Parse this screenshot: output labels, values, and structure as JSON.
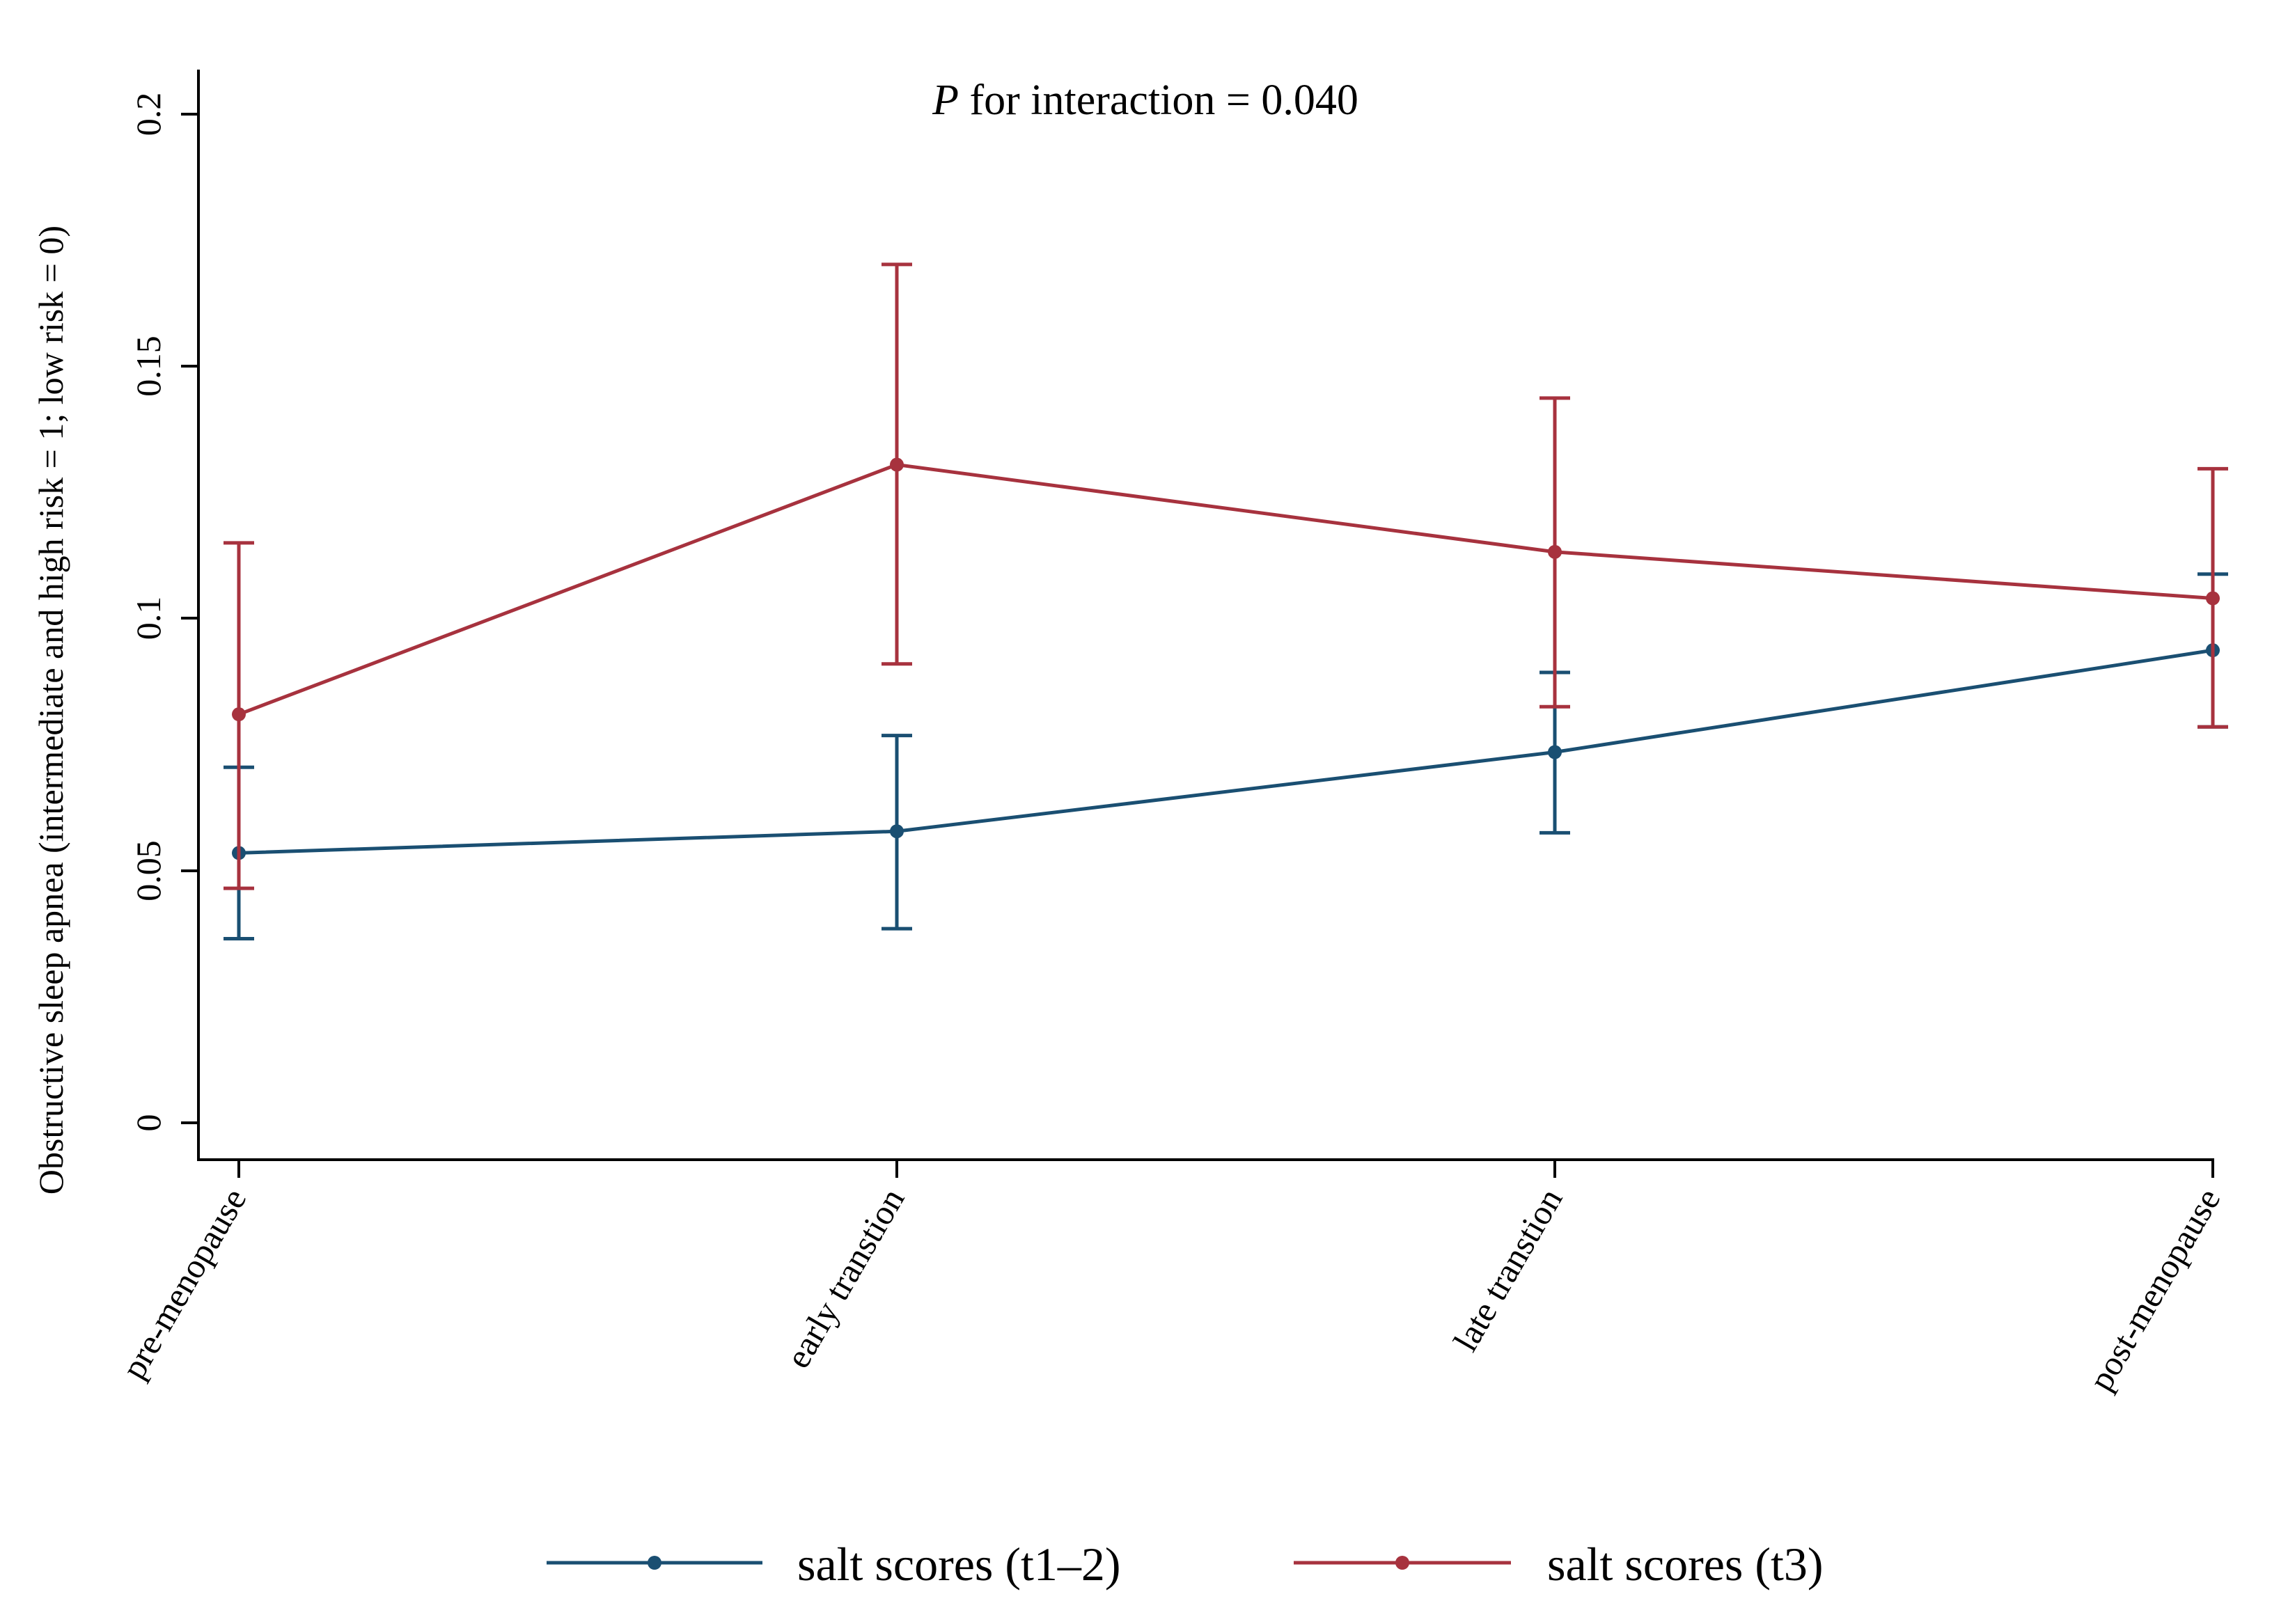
{
  "chart_data": {
    "type": "line",
    "annotation_italic": "P",
    "annotation_rest": " for interaction = 0.040",
    "ylabel": "Obstructive sleep apnea (intermediate and high risk = 1; low risk = 0)",
    "xlabel": "",
    "categories": [
      "pre-menopause",
      "early transtion",
      "late transtion",
      "post-menopause"
    ],
    "ylim": [
      0,
      0.2
    ],
    "yticks": [
      0,
      0.05,
      0.1,
      0.15,
      0.2
    ],
    "ytick_labels": [
      "0",
      "0.05",
      "0.1",
      "0.15",
      "0.2"
    ],
    "error_bars": "confidence intervals",
    "series": [
      {
        "name": "salt scores (t1–2)",
        "color": "#1a4f72",
        "values": [
          0.0535,
          0.0578,
          0.0735,
          0.0937
        ],
        "lower": [
          0.0365,
          0.0385,
          0.0575,
          0.0785
        ],
        "upper": [
          0.0705,
          0.0768,
          0.0893,
          0.1088
        ]
      },
      {
        "name": "salt scores (t3)",
        "color": "#a7323e",
        "values": [
          0.081,
          0.1305,
          0.1132,
          0.104
        ],
        "lower": [
          0.0465,
          0.091,
          0.0825,
          0.0785
        ],
        "upper": [
          0.115,
          0.1702,
          0.1437,
          0.1297
        ]
      }
    ],
    "legend_position": "bottom-center"
  }
}
